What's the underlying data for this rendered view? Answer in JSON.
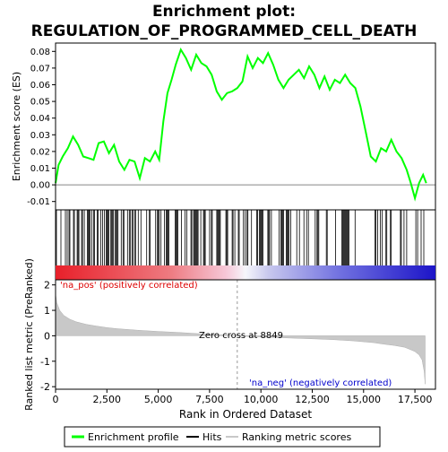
{
  "chart_data": {
    "type": "line",
    "title_line1": "Enrichment plot:",
    "title_line2": "REGULATION_OF_PROGRAMMED_CELL_DEATH",
    "xlabel": "Rank in Ordered Dataset",
    "es_ylabel": "Enrichment score (ES)",
    "metric_ylabel": "Ranked list metric (PreRanked)",
    "xlim": [
      0,
      18500
    ],
    "x_ticks": [
      0,
      2500,
      5000,
      7500,
      10000,
      12500,
      15000,
      17500
    ],
    "x_tick_labels": [
      "0",
      "2,500",
      "5,000",
      "7,500",
      "10,000",
      "12,500",
      "15,000",
      "17,500"
    ],
    "es_ylim": [
      -0.015,
      0.085
    ],
    "es_ticks": [
      -0.01,
      0.0,
      0.01,
      0.02,
      0.03,
      0.04,
      0.05,
      0.06,
      0.07,
      0.08
    ],
    "es_tick_labels": [
      "-0.01",
      "0.00",
      "0.01",
      "0.02",
      "0.03",
      "0.04",
      "0.05",
      "0.06",
      "0.07",
      "0.08"
    ],
    "metric_ylim": [
      -2.1,
      2.2
    ],
    "metric_ticks": [
      2,
      1,
      0,
      -1,
      -2
    ],
    "metric_tick_labels": [
      "2",
      "1",
      "0",
      "-1",
      "-2"
    ],
    "enrichment_profile": {
      "name": "Enrichment profile",
      "color": "#00ff00",
      "x": [
        0,
        150,
        350,
        600,
        850,
        1100,
        1350,
        1600,
        1850,
        2100,
        2350,
        2600,
        2850,
        3100,
        3350,
        3600,
        3850,
        4100,
        4350,
        4600,
        4850,
        5050,
        5250,
        5450,
        5650,
        5850,
        6100,
        6350,
        6600,
        6850,
        7100,
        7350,
        7600,
        7850,
        8100,
        8350,
        8600,
        8849,
        9100,
        9350,
        9600,
        9850,
        10100,
        10350,
        10600,
        10850,
        11100,
        11350,
        11600,
        11850,
        12100,
        12350,
        12600,
        12850,
        13100,
        13350,
        13600,
        13850,
        14100,
        14350,
        14600,
        14850,
        15100,
        15350,
        15600,
        15850,
        16100,
        16350,
        16600,
        16850,
        17100,
        17300,
        17500,
        17700,
        17900,
        18050
      ],
      "y": [
        0.001,
        0.012,
        0.017,
        0.022,
        0.029,
        0.024,
        0.017,
        0.016,
        0.015,
        0.025,
        0.026,
        0.019,
        0.024,
        0.014,
        0.009,
        0.015,
        0.014,
        0.004,
        0.016,
        0.014,
        0.02,
        0.015,
        0.038,
        0.055,
        0.063,
        0.072,
        0.081,
        0.076,
        0.069,
        0.078,
        0.073,
        0.071,
        0.066,
        0.056,
        0.051,
        0.055,
        0.056,
        0.058,
        0.062,
        0.077,
        0.07,
        0.076,
        0.073,
        0.079,
        0.072,
        0.063,
        0.058,
        0.063,
        0.066,
        0.069,
        0.064,
        0.071,
        0.066,
        0.058,
        0.065,
        0.057,
        0.063,
        0.061,
        0.066,
        0.061,
        0.058,
        0.047,
        0.032,
        0.017,
        0.014,
        0.022,
        0.02,
        0.027,
        0.02,
        0.016,
        0.009,
        0.001,
        -0.008,
        0.001,
        0.006,
        0.001
      ]
    },
    "hits": {
      "name": "Hits",
      "color": "#000000",
      "dense_ranges": [
        [
          0,
          1000
        ],
        [
          1050,
          1400
        ],
        [
          1550,
          2600
        ],
        [
          2650,
          3050
        ],
        [
          3200,
          4200
        ],
        [
          4350,
          5200
        ],
        [
          5300,
          6400
        ],
        [
          6550,
          7300
        ],
        [
          7500,
          7700
        ],
        [
          7850,
          8150
        ],
        [
          8250,
          8450
        ],
        [
          8600,
          8800
        ],
        [
          8900,
          9050
        ],
        [
          9150,
          9400
        ],
        [
          9500,
          9600
        ],
        [
          9750,
          10150
        ],
        [
          10250,
          10550
        ],
        [
          10750,
          11600
        ],
        [
          11700,
          12400
        ],
        [
          12600,
          12850
        ],
        [
          13100,
          13300
        ],
        [
          13500,
          13700
        ],
        [
          13850,
          14300
        ],
        [
          14500,
          14600
        ],
        [
          15550,
          15900
        ],
        [
          16000,
          16450
        ],
        [
          16750,
          17000
        ],
        [
          17100,
          17150
        ],
        [
          17500,
          17650
        ],
        [
          17800,
          17950
        ]
      ],
      "density": 0.55
    },
    "rank_colorbar": {
      "positive_color": "#e8202a",
      "mid_color": "#f6f6fb",
      "negative_color": "#1c14c8"
    },
    "ranking_metric": {
      "name": "Ranking metric scores",
      "color": "#c8c8c8",
      "x": [
        0,
        60,
        200,
        400,
        700,
        1000,
        1500,
        2000,
        2500,
        3000,
        4000,
        5000,
        6000,
        7000,
        8000,
        8849,
        9500,
        10500,
        11500,
        12500,
        13500,
        14500,
        15500,
        16000,
        16500,
        17000,
        17300,
        17500,
        17700,
        17850,
        17950,
        18000
      ],
      "y": [
        1.65,
        1.3,
        1.0,
        0.8,
        0.65,
        0.55,
        0.45,
        0.38,
        0.32,
        0.28,
        0.22,
        0.17,
        0.13,
        0.08,
        0.04,
        0.0,
        -0.03,
        -0.06,
        -0.09,
        -0.12,
        -0.15,
        -0.2,
        -0.27,
        -0.33,
        -0.38,
        -0.45,
        -0.55,
        -0.62,
        -0.75,
        -0.95,
        -1.4,
        -1.9
      ]
    },
    "annotations": {
      "pos_label": "'na_pos' (positively correlated)",
      "neg_label": "'na_neg' (negatively correlated)",
      "zero_cross_label": "Zero cross at 8849",
      "zero_cross_rank": 8849
    },
    "legend": {
      "placement": "bottom",
      "items": [
        {
          "label": "Enrichment profile",
          "color": "#00ff00"
        },
        {
          "label": "Hits",
          "color": "#000000"
        },
        {
          "label": "Ranking metric scores",
          "color": "#c8c8c8"
        }
      ]
    }
  }
}
